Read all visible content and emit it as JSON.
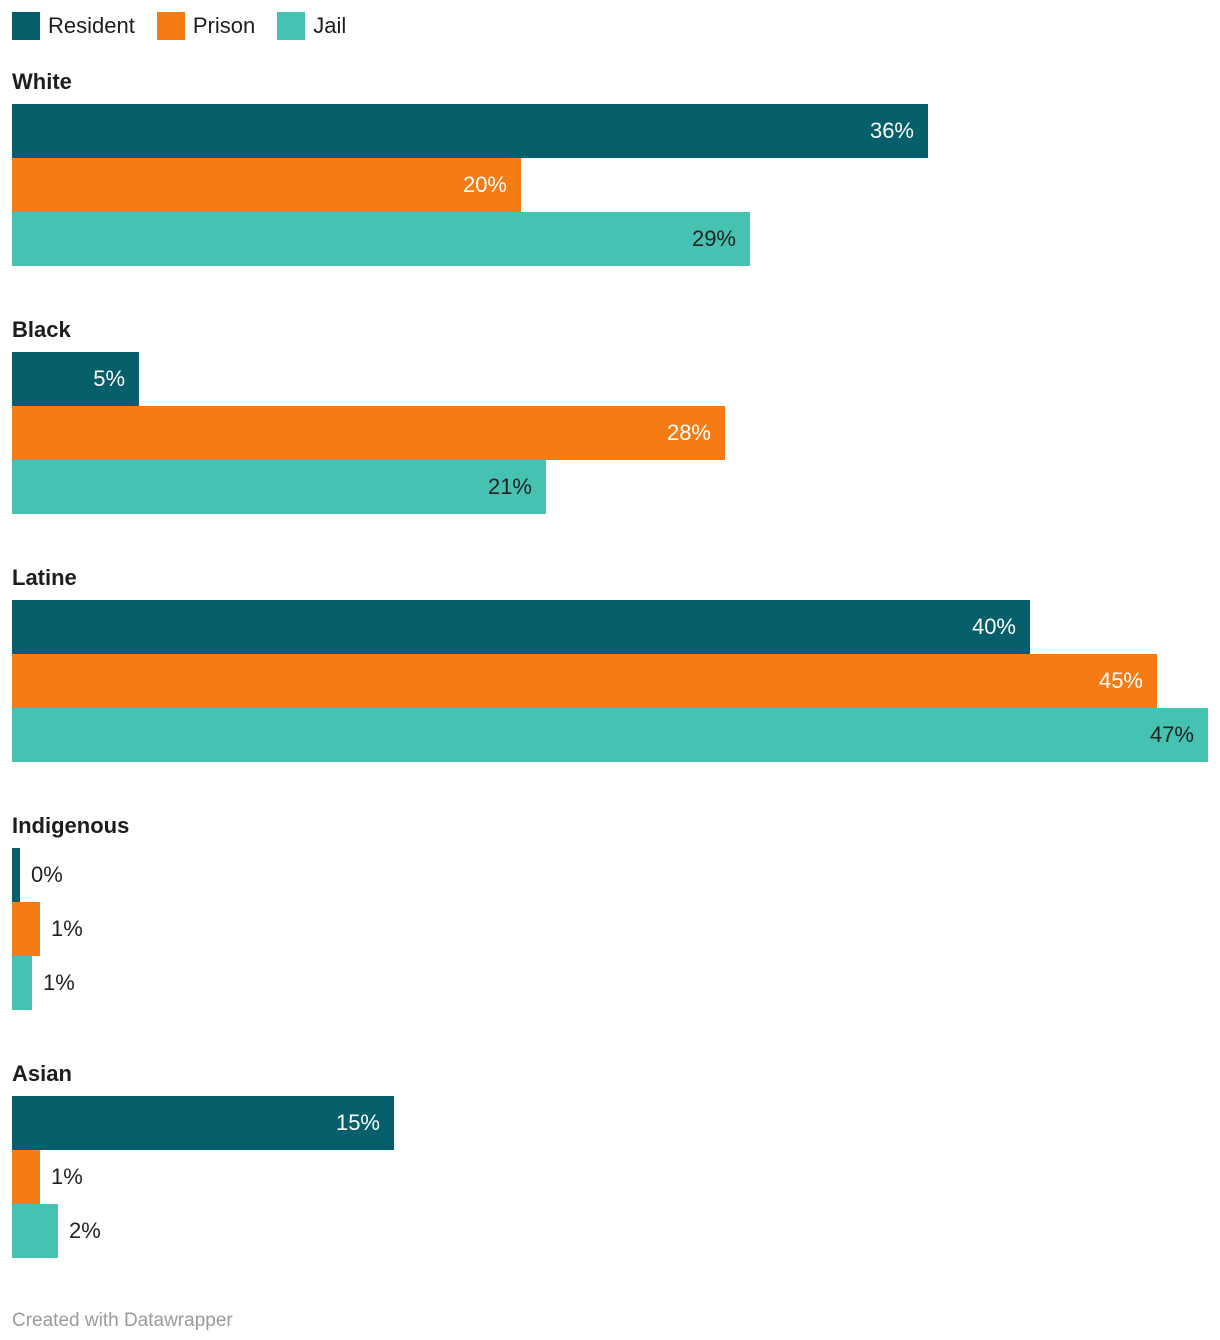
{
  "colors": {
    "background": "#FFFFFF",
    "text": "#1D1D1D",
    "dark_value_label": "#212121",
    "white_value_label": "#FFFFFF",
    "footer_text": "#9B9B9B"
  },
  "chart_data": {
    "type": "bar",
    "orientation": "horizontal",
    "legend_position": "top",
    "grid": false,
    "categories": [
      "White",
      "Black",
      "Latine",
      "Indigenous",
      "Asian"
    ],
    "series": [
      {
        "name": "Resident",
        "color": "#055F6A",
        "values": [
          36,
          5,
          40,
          0,
          15
        ]
      },
      {
        "name": "Prison",
        "color": "#F57C15",
        "values": [
          20,
          28,
          45,
          1,
          1
        ]
      },
      {
        "name": "Jail",
        "color": "#46C2B2",
        "values": [
          29,
          21,
          47,
          1,
          2
        ]
      }
    ],
    "xlim": [
      0,
      47
    ],
    "value_suffix": "%",
    "footer": "Created with Datawrapper"
  },
  "groups": [
    {
      "label": "White",
      "bars": [
        {
          "series": "Resident",
          "value": 36,
          "display": "36%"
        },
        {
          "series": "Prison",
          "value": 20,
          "display": "20%"
        },
        {
          "series": "Jail",
          "value": 29,
          "display": "29%"
        }
      ]
    },
    {
      "label": "Black",
      "bars": [
        {
          "series": "Resident",
          "value": 5,
          "display": "5%"
        },
        {
          "series": "Prison",
          "value": 28,
          "display": "28%"
        },
        {
          "series": "Jail",
          "value": 21,
          "display": "21%"
        }
      ]
    },
    {
      "label": "Latine",
      "bars": [
        {
          "series": "Resident",
          "value": 40,
          "display": "40%"
        },
        {
          "series": "Prison",
          "value": 45,
          "display": "45%"
        },
        {
          "series": "Jail",
          "value": 47,
          "display": "47%"
        }
      ]
    },
    {
      "label": "Indigenous",
      "bars": [
        {
          "series": "Resident",
          "value": 0.3,
          "display": "0%"
        },
        {
          "series": "Prison",
          "value": 1.1,
          "display": "1%"
        },
        {
          "series": "Jail",
          "value": 0.8,
          "display": "1%"
        }
      ]
    },
    {
      "label": "Asian",
      "bars": [
        {
          "series": "Resident",
          "value": 15,
          "display": "15%"
        },
        {
          "series": "Prison",
          "value": 1.1,
          "display": "1%"
        },
        {
          "series": "Jail",
          "value": 1.8,
          "display": "2%"
        }
      ]
    }
  ]
}
